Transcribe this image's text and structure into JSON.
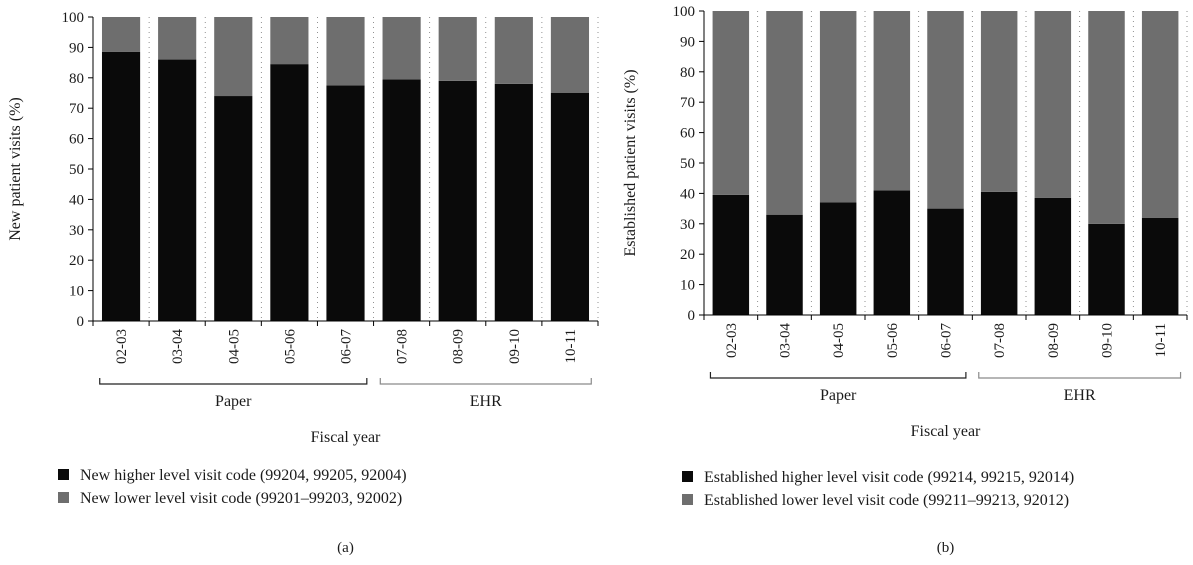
{
  "colors": {
    "higher": "#0a0a0a",
    "lower": "#6e6e6e",
    "paper_bracket": "#222222",
    "ehr_bracket": "#8a8a8a"
  },
  "chart_data": [
    {
      "type": "bar",
      "stacked": true,
      "panel_label": "(a)",
      "ylabel": "New patient visits (%)",
      "xlabel": "Fiscal year",
      "ylim": [
        0,
        100
      ],
      "yticks": [
        0,
        10,
        20,
        30,
        40,
        50,
        60,
        70,
        80,
        90,
        100
      ],
      "grid": "dotted vertical",
      "categories": [
        "02-03",
        "03-04",
        "04-05",
        "05-06",
        "06-07",
        "07-08",
        "08-09",
        "09-10",
        "10-11"
      ],
      "groups": [
        {
          "label": "Paper",
          "from": "02-03",
          "to": "06-07"
        },
        {
          "label": "EHR",
          "from": "07-08",
          "to": "10-11"
        }
      ],
      "series": [
        {
          "name": "New higher level visit code (99204, 99205, 92004)",
          "values": [
            88.5,
            86,
            74,
            84.5,
            77.5,
            79.5,
            79,
            78,
            75
          ]
        },
        {
          "name": "New lower level visit code (99201–99203, 92002)",
          "values": [
            11.5,
            14,
            26,
            15.5,
            22.5,
            20.5,
            21,
            22,
            25
          ]
        }
      ],
      "legend_position": "bottom"
    },
    {
      "type": "bar",
      "stacked": true,
      "panel_label": "(b)",
      "ylabel": "Established patient visits (%)",
      "xlabel": "Fiscal year",
      "ylim": [
        0,
        100
      ],
      "yticks": [
        0,
        10,
        20,
        30,
        40,
        50,
        60,
        70,
        80,
        90,
        100
      ],
      "grid": "dotted vertical",
      "categories": [
        "02-03",
        "03-04",
        "04-05",
        "05-06",
        "06-07",
        "07-08",
        "08-09",
        "09-10",
        "10-11"
      ],
      "groups": [
        {
          "label": "Paper",
          "from": "02-03",
          "to": "06-07"
        },
        {
          "label": "EHR",
          "from": "07-08",
          "to": "10-11"
        }
      ],
      "series": [
        {
          "name": "Established higher level visit code (99214, 99215, 92014)",
          "values": [
            39.5,
            33,
            37,
            41,
            35,
            40.5,
            38.5,
            30,
            32
          ]
        },
        {
          "name": "Established lower level visit code (99211–99213, 92012)",
          "values": [
            60.5,
            67,
            63,
            59,
            65,
            59.5,
            61.5,
            70,
            68
          ]
        }
      ],
      "legend_position": "bottom"
    }
  ]
}
